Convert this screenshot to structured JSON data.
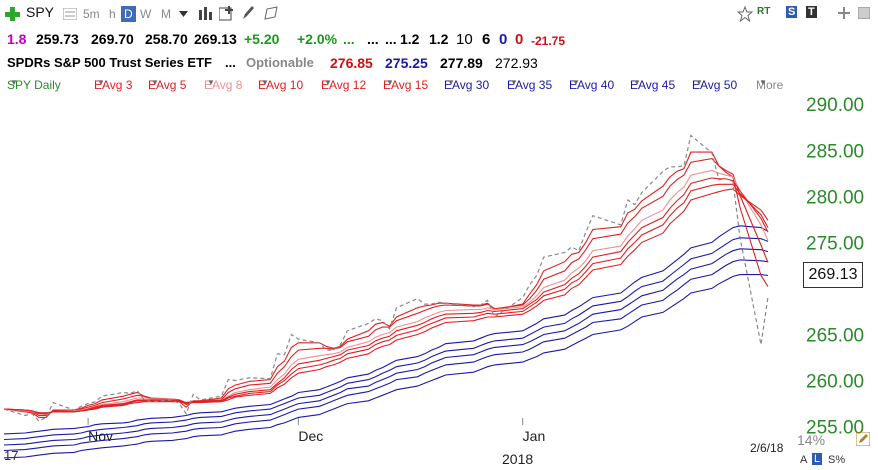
{
  "toolbar": {
    "symbol": "SPY",
    "intervals": [
      "5m",
      "h",
      "D",
      "W",
      "M"
    ],
    "selected_interval": "D"
  },
  "quote": {
    "num": "1.8",
    "open": "259.73",
    "high": "269.70",
    "low": "258.70",
    "close": "269.13",
    "change": "+5.20",
    "change_pct": "+2.0%",
    "dots1": "...",
    "dots2": "...",
    "dots3": "...",
    "v1": "1.2",
    "v2": "1.2",
    "v3": "10",
    "v4": "6",
    "v5": "0",
    "v6": "0",
    "v7": "-21.75"
  },
  "info": {
    "name": "SPDRs S&P 500 Trust Series ETF",
    "dots": "...",
    "optionable": "Optionable",
    "p1": "276.85",
    "p2": "275.25",
    "p3": "277.89",
    "p4": "272.93"
  },
  "studies": {
    "main": "SPY Daily",
    "list": [
      "EAvg 3",
      "EAvg 5",
      "EAvg 8",
      "EAvg 10",
      "EAvg 12",
      "EAvg 15",
      "EAvg 30",
      "EAvg 35",
      "EAvg 40",
      "EAvg 45",
      "EAvg 50"
    ],
    "more": "More"
  },
  "colors": {
    "short_ema": "#e02020",
    "light_ema": "#f09090",
    "long_ema": "#1a1aa8",
    "price": "#888888",
    "axis_green": "#2a8a2a",
    "blue": "#1a1aa8",
    "red": "#d01010",
    "magenta": "#c000c0"
  },
  "bottom": {
    "pct": "14%",
    "date": "2/6/18",
    "a": "A",
    "l": "L",
    "s": "S%",
    "left": "17"
  },
  "price_label": "269.13",
  "chart_data": {
    "type": "line",
    "title": "SPY Daily",
    "ylim": [
      253,
      291
    ],
    "yticks": [
      "290.00",
      "285.00",
      "280.00",
      "275.00",
      "265.00",
      "260.00",
      "255.00"
    ],
    "xticks": [
      "Nov",
      "Dec",
      "Jan"
    ],
    "year_label": "2018",
    "x": [
      "2017-10-20",
      "2017-10-23",
      "2017-10-24",
      "2017-10-25",
      "2017-10-26",
      "2017-10-27",
      "2017-10-30",
      "2017-10-31",
      "2017-11-01",
      "2017-11-02",
      "2017-11-03",
      "2017-11-06",
      "2017-11-07",
      "2017-11-08",
      "2017-11-09",
      "2017-11-10",
      "2017-11-13",
      "2017-11-14",
      "2017-11-15",
      "2017-11-16",
      "2017-11-17",
      "2017-11-20",
      "2017-11-21",
      "2017-11-22",
      "2017-11-24",
      "2017-11-27",
      "2017-11-28",
      "2017-11-29",
      "2017-11-30",
      "2017-12-01",
      "2017-12-04",
      "2017-12-05",
      "2017-12-06",
      "2017-12-07",
      "2017-12-08",
      "2017-12-11",
      "2017-12-12",
      "2017-12-13",
      "2017-12-14",
      "2017-12-15",
      "2017-12-18",
      "2017-12-19",
      "2017-12-20",
      "2017-12-21",
      "2017-12-22",
      "2017-12-26",
      "2017-12-27",
      "2017-12-28",
      "2017-12-29",
      "2018-01-02",
      "2018-01-03",
      "2018-01-04",
      "2018-01-05",
      "2018-01-08",
      "2018-01-09",
      "2018-01-10",
      "2018-01-11",
      "2018-01-12",
      "2018-01-16",
      "2018-01-17",
      "2018-01-18",
      "2018-01-19",
      "2018-01-22",
      "2018-01-23",
      "2018-01-24",
      "2018-01-25",
      "2018-01-26",
      "2018-01-29",
      "2018-01-30",
      "2018-01-31",
      "2018-02-01",
      "2018-02-02",
      "2018-02-05",
      "2018-02-06"
    ],
    "series": [
      {
        "name": "SPY Daily",
        "values": [
          256.9,
          256.2,
          256.4,
          255.6,
          256.0,
          257.6,
          256.8,
          257.2,
          257.5,
          257.7,
          258.3,
          258.7,
          258.6,
          258.9,
          257.9,
          257.7,
          257.9,
          257.5,
          256.4,
          258.5,
          257.9,
          258.3,
          260.1,
          260.0,
          260.3,
          260.2,
          262.9,
          262.8,
          265.0,
          264.5,
          264.1,
          263.3,
          263.3,
          263.9,
          265.4,
          266.2,
          266.7,
          266.5,
          265.6,
          267.9,
          268.9,
          268.3,
          268.3,
          268.5,
          268.4,
          268.0,
          268.2,
          268.7,
          266.9,
          269.0,
          270.4,
          271.4,
          273.4,
          273.9,
          274.5,
          274.1,
          276.1,
          277.9,
          276.9,
          279.6,
          279.1,
          280.4,
          282.7,
          283.2,
          283.2,
          283.3,
          286.6,
          284.7,
          281.8,
          281.9,
          281.6,
          275.5,
          263.9,
          269.1
        ]
      },
      {
        "name": "EAvg 3",
        "values": [
          256.9,
          256.6,
          256.5,
          256.0,
          256.0,
          256.8,
          256.8,
          257.0,
          257.3,
          257.5,
          257.9,
          258.3,
          258.5,
          258.7,
          258.3,
          258.0,
          257.9,
          257.7,
          257.1,
          257.8,
          257.8,
          258.1,
          259.1,
          259.5,
          259.9,
          260.1,
          261.5,
          262.1,
          263.6,
          264.1,
          264.1,
          263.7,
          263.5,
          263.7,
          264.5,
          265.4,
          266.1,
          266.3,
          265.9,
          266.9,
          267.9,
          268.1,
          268.2,
          268.4,
          268.4,
          268.2,
          268.2,
          268.4,
          267.7,
          268.3,
          269.4,
          270.4,
          271.9,
          272.9,
          273.7,
          273.9,
          275.0,
          276.4,
          276.7,
          278.2,
          278.6,
          279.5,
          281.1,
          282.1,
          282.7,
          283.0,
          284.8,
          284.8,
          283.3,
          282.6,
          282.1,
          278.8,
          271.4,
          270.2
        ]
      },
      {
        "name": "EAvg 5",
        "values": [
          256.9,
          256.7,
          256.6,
          256.2,
          256.2,
          256.7,
          256.7,
          256.9,
          257.1,
          257.3,
          257.6,
          258.0,
          258.2,
          258.4,
          258.3,
          258.1,
          258.0,
          257.9,
          257.4,
          257.7,
          257.8,
          257.9,
          258.7,
          259.1,
          259.5,
          259.7,
          260.8,
          261.5,
          262.6,
          263.3,
          263.5,
          263.5,
          263.4,
          263.6,
          264.2,
          264.8,
          265.5,
          265.8,
          265.8,
          266.5,
          267.3,
          267.6,
          267.9,
          268.1,
          268.2,
          268.1,
          268.1,
          268.3,
          267.8,
          268.2,
          268.9,
          269.8,
          271.0,
          271.9,
          272.8,
          273.2,
          274.2,
          275.4,
          275.9,
          277.1,
          277.8,
          278.7,
          280.0,
          281.1,
          281.8,
          282.3,
          283.7,
          284.1,
          283.3,
          282.8,
          282.4,
          280.1,
          274.7,
          272.8
        ]
      },
      {
        "name": "EAvg 8",
        "values": [
          256.9,
          256.7,
          256.6,
          256.4,
          256.3,
          256.6,
          256.7,
          256.8,
          257.0,
          257.2,
          257.4,
          257.7,
          257.9,
          258.1,
          258.1,
          258.0,
          258.0,
          257.9,
          257.6,
          257.7,
          257.7,
          257.8,
          258.3,
          258.7,
          259.0,
          259.3,
          260.1,
          260.7,
          261.7,
          262.3,
          262.7,
          262.8,
          262.9,
          263.1,
          263.6,
          264.2,
          264.7,
          265.0,
          265.2,
          265.8,
          266.4,
          266.8,
          267.1,
          267.4,
          267.6,
          267.7,
          267.7,
          267.9,
          267.7,
          268.0,
          268.5,
          269.2,
          270.1,
          270.9,
          271.7,
          272.2,
          273.0,
          274.1,
          274.6,
          275.7,
          276.5,
          277.4,
          278.5,
          279.6,
          280.4,
          281.0,
          282.3,
          282.8,
          282.5,
          282.3,
          282.1,
          280.6,
          276.9,
          275.2
        ]
      },
      {
        "name": "EAvg 10",
        "values": [
          256.9,
          256.8,
          256.7,
          256.4,
          256.4,
          256.6,
          256.6,
          256.7,
          256.9,
          257.1,
          257.3,
          257.5,
          257.7,
          257.9,
          257.9,
          257.9,
          257.9,
          257.9,
          257.6,
          257.7,
          257.7,
          257.8,
          258.2,
          258.5,
          258.8,
          259.0,
          259.7,
          260.3,
          261.2,
          261.8,
          262.2,
          262.4,
          262.6,
          262.8,
          263.3,
          263.8,
          264.3,
          264.6,
          264.8,
          265.4,
          266.0,
          266.3,
          266.7,
          267.0,
          267.2,
          267.3,
          267.4,
          267.6,
          267.5,
          267.8,
          268.3,
          268.8,
          269.6,
          270.4,
          271.1,
          271.6,
          272.4,
          273.4,
          274.0,
          275.0,
          275.8,
          276.6,
          277.7,
          278.7,
          279.5,
          280.2,
          281.4,
          282.0,
          281.9,
          281.9,
          281.7,
          280.6,
          277.6,
          276.1
        ]
      },
      {
        "name": "EAvg 12",
        "values": [
          256.9,
          256.8,
          256.7,
          256.5,
          256.4,
          256.6,
          256.6,
          256.7,
          256.8,
          257.0,
          257.2,
          257.4,
          257.6,
          257.8,
          257.8,
          257.8,
          257.8,
          257.8,
          257.6,
          257.7,
          257.7,
          257.7,
          258.1,
          258.3,
          258.6,
          258.8,
          259.5,
          260.0,
          260.7,
          261.3,
          261.7,
          261.9,
          262.2,
          262.4,
          262.9,
          263.4,
          263.9,
          264.2,
          264.4,
          264.9,
          265.5,
          265.9,
          266.2,
          266.5,
          266.8,
          266.9,
          267.1,
          267.3,
          267.2,
          267.5,
          268.0,
          268.5,
          269.2,
          269.9,
          270.6,
          271.0,
          271.8,
          272.7,
          273.3,
          274.3,
          275.0,
          275.8,
          276.9,
          277.9,
          278.7,
          279.3,
          280.6,
          281.2,
          281.3,
          281.3,
          281.3,
          280.3,
          278.0,
          276.6
        ]
      },
      {
        "name": "EAvg 15",
        "values": [
          256.9,
          256.8,
          256.7,
          256.5,
          256.5,
          256.6,
          256.6,
          256.7,
          256.8,
          256.9,
          257.1,
          257.3,
          257.5,
          257.6,
          257.7,
          257.7,
          257.7,
          257.7,
          257.5,
          257.6,
          257.6,
          257.7,
          257.9,
          258.2,
          258.4,
          258.6,
          259.2,
          259.6,
          260.3,
          260.8,
          261.2,
          261.5,
          261.7,
          262.0,
          262.4,
          262.9,
          263.4,
          263.7,
          263.9,
          264.4,
          265.0,
          265.3,
          265.7,
          266.0,
          266.3,
          266.5,
          266.7,
          266.9,
          266.9,
          267.2,
          267.6,
          268.1,
          268.7,
          269.3,
          270.0,
          270.4,
          271.2,
          272.0,
          272.6,
          273.5,
          274.2,
          275.0,
          276.0,
          277.0,
          277.7,
          278.4,
          279.6,
          280.3,
          280.5,
          280.7,
          280.8,
          280.1,
          278.5,
          277.4
        ]
      },
      {
        "name": "EAvg 30",
        "values": [
          254.2,
          254.3,
          254.4,
          254.5,
          254.6,
          254.7,
          254.8,
          254.9,
          255.0,
          255.2,
          255.3,
          255.4,
          255.5,
          255.7,
          255.8,
          255.9,
          256.0,
          256.1,
          256.2,
          256.4,
          256.5,
          256.6,
          256.8,
          257.0,
          257.2,
          257.4,
          257.7,
          258.0,
          258.3,
          258.7,
          259.0,
          259.3,
          259.6,
          259.9,
          260.3,
          260.7,
          261.1,
          261.4,
          261.8,
          262.2,
          262.6,
          262.9,
          263.3,
          263.6,
          264.0,
          264.3,
          264.6,
          264.9,
          265.1,
          265.4,
          265.8,
          266.2,
          266.7,
          267.1,
          267.6,
          268.0,
          268.5,
          269.0,
          269.5,
          270.1,
          270.7,
          271.2,
          271.9,
          272.5,
          273.1,
          273.7,
          274.4,
          275.0,
          275.6,
          276.1,
          276.6,
          276.8,
          276.6,
          276.2
        ]
      },
      {
        "name": "EAvg 35",
        "values": [
          253.6,
          253.7,
          253.8,
          253.9,
          254.0,
          254.1,
          254.2,
          254.3,
          254.5,
          254.6,
          254.7,
          254.9,
          255.0,
          255.1,
          255.3,
          255.4,
          255.5,
          255.6,
          255.7,
          255.9,
          256.0,
          256.1,
          256.3,
          256.5,
          256.7,
          256.9,
          257.2,
          257.5,
          257.8,
          258.1,
          258.4,
          258.7,
          259.0,
          259.3,
          259.7,
          260.1,
          260.4,
          260.8,
          261.1,
          261.5,
          261.9,
          262.2,
          262.6,
          262.9,
          263.2,
          263.5,
          263.8,
          264.1,
          264.3,
          264.6,
          265.0,
          265.4,
          265.8,
          266.2,
          266.7,
          267.1,
          267.6,
          268.1,
          268.6,
          269.1,
          269.7,
          270.2,
          270.8,
          271.4,
          272.0,
          272.6,
          273.2,
          273.8,
          274.3,
          274.8,
          275.3,
          275.5,
          275.4,
          275.1
        ]
      },
      {
        "name": "EAvg 40",
        "values": [
          253.0,
          253.1,
          253.2,
          253.3,
          253.4,
          253.5,
          253.6,
          253.7,
          253.9,
          254.0,
          254.1,
          254.3,
          254.4,
          254.5,
          254.7,
          254.8,
          254.9,
          255.0,
          255.1,
          255.3,
          255.4,
          255.5,
          255.7,
          255.9,
          256.1,
          256.3,
          256.6,
          256.9,
          257.2,
          257.5,
          257.8,
          258.1,
          258.4,
          258.7,
          259.1,
          259.4,
          259.8,
          260.1,
          260.4,
          260.8,
          261.2,
          261.5,
          261.9,
          262.2,
          262.5,
          262.8,
          263.1,
          263.4,
          263.6,
          263.9,
          264.2,
          264.6,
          265.0,
          265.4,
          265.8,
          266.2,
          266.7,
          267.2,
          267.7,
          268.2,
          268.7,
          269.2,
          269.8,
          270.4,
          271.0,
          271.5,
          272.1,
          272.7,
          273.2,
          273.7,
          274.1,
          274.3,
          274.2,
          274.0
        ]
      },
      {
        "name": "EAvg 45",
        "values": [
          252.4,
          252.5,
          252.6,
          252.7,
          252.8,
          252.9,
          253.0,
          253.2,
          253.3,
          253.4,
          253.5,
          253.7,
          253.8,
          253.9,
          254.1,
          254.2,
          254.3,
          254.4,
          254.5,
          254.7,
          254.8,
          254.9,
          255.1,
          255.3,
          255.5,
          255.7,
          256.0,
          256.3,
          256.6,
          256.9,
          257.2,
          257.5,
          257.8,
          258.1,
          258.4,
          258.8,
          259.1,
          259.4,
          259.7,
          260.1,
          260.4,
          260.8,
          261.1,
          261.4,
          261.7,
          262.0,
          262.3,
          262.6,
          262.8,
          263.1,
          263.4,
          263.8,
          264.2,
          264.6,
          265.0,
          265.4,
          265.8,
          266.3,
          266.7,
          267.2,
          267.7,
          268.2,
          268.7,
          269.3,
          269.8,
          270.4,
          271.0,
          271.5,
          272.0,
          272.5,
          272.9,
          273.1,
          273.0,
          272.9
        ]
      },
      {
        "name": "EAvg 50",
        "values": [
          251.6,
          251.7,
          251.8,
          251.9,
          252.0,
          252.1,
          252.2,
          252.4,
          252.5,
          252.6,
          252.7,
          252.9,
          253.0,
          253.1,
          253.3,
          253.4,
          253.5,
          253.6,
          253.7,
          253.9,
          254.0,
          254.1,
          254.3,
          254.5,
          254.7,
          254.9,
          255.2,
          255.4,
          255.7,
          256.0,
          256.3,
          256.6,
          256.9,
          257.2,
          257.5,
          257.8,
          258.1,
          258.4,
          258.7,
          259.0,
          259.4,
          259.7,
          260.0,
          260.3,
          260.6,
          260.9,
          261.2,
          261.5,
          261.7,
          262.0,
          262.3,
          262.6,
          263.0,
          263.4,
          263.8,
          264.2,
          264.6,
          265.0,
          265.5,
          265.9,
          266.4,
          266.9,
          267.4,
          267.9,
          268.4,
          268.9,
          269.5,
          270.0,
          270.5,
          270.9,
          271.3,
          271.5,
          271.5,
          271.4
        ]
      }
    ]
  }
}
